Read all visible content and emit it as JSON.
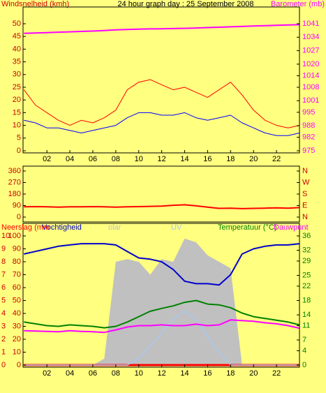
{
  "chart_data": [
    {
      "type": "line",
      "title": "24 hour graph day : 25 September 2008",
      "y_label": "Windsnelheid (kmh)",
      "y2_label": "Barometer (mb)",
      "xlim": [
        0,
        24
      ],
      "xticks": [
        {
          "value": 2,
          "label": "02"
        },
        {
          "value": 4,
          "label": "04"
        },
        {
          "value": 6,
          "label": "06"
        },
        {
          "value": 8,
          "label": "08"
        },
        {
          "value": 10,
          "label": "10"
        },
        {
          "value": 12,
          "label": "12"
        },
        {
          "value": 14,
          "label": "14"
        },
        {
          "value": 16,
          "label": "16"
        },
        {
          "value": 18,
          "label": "18"
        },
        {
          "value": 20,
          "label": "20"
        },
        {
          "value": 22,
          "label": "22"
        }
      ],
      "ylim": [
        0,
        50
      ],
      "yticks": [
        50,
        45,
        40,
        35,
        30,
        25,
        20,
        15,
        10,
        5,
        0
      ],
      "y2lim": [
        975,
        1041
      ],
      "y2ticks": [
        1041,
        1034,
        1027,
        1020,
        1014,
        1008,
        1001,
        995,
        988,
        982,
        975
      ],
      "x": [
        0,
        1,
        2,
        3,
        4,
        5,
        6,
        7,
        8,
        9,
        10,
        11,
        12,
        13,
        14,
        15,
        16,
        17,
        18,
        19,
        20,
        21,
        22,
        23,
        24
      ],
      "series": [
        {
          "color": "#ff0000",
          "axis": "y",
          "values": [
            24,
            18,
            15,
            12,
            10,
            12,
            11,
            13,
            16,
            24,
            27,
            28,
            26,
            24,
            25,
            23,
            21,
            24,
            27,
            22,
            16,
            12,
            10,
            9,
            10
          ]
        },
        {
          "color": "#0000ff",
          "axis": "y",
          "values": [
            12,
            11,
            9,
            9,
            8,
            7,
            8,
            9,
            10,
            13,
            15,
            15,
            14,
            14,
            15,
            13,
            12,
            13,
            14,
            11,
            9,
            7,
            6,
            6,
            7
          ]
        },
        {
          "color": "#ff00ff",
          "axis": "y2",
          "values": [
            1036,
            1036.2,
            1036.4,
            1036.6,
            1036.8,
            1037,
            1037.2,
            1037.5,
            1037.8,
            1038,
            1038.2,
            1038.3,
            1038.4,
            1038.5,
            1038.6,
            1038.8,
            1039,
            1039.2,
            1039.4,
            1039.6,
            1039.8,
            1040,
            1040.2,
            1040.4,
            1040.5
          ]
        }
      ]
    },
    {
      "type": "line",
      "xlim": [
        0,
        24
      ],
      "ylim": [
        0,
        360
      ],
      "yticks": [
        360,
        270,
        180,
        90,
        0
      ],
      "y2lim": [
        0,
        360
      ],
      "y2ticks": [
        {
          "value": 360,
          "label": "N"
        },
        {
          "value": 270,
          "label": "W"
        },
        {
          "value": 180,
          "label": "S"
        },
        {
          "value": 90,
          "label": "E"
        },
        {
          "value": 0,
          "label": "N"
        }
      ],
      "x": [
        0,
        1,
        2,
        3,
        4,
        5,
        6,
        7,
        8,
        9,
        10,
        11,
        12,
        13,
        14,
        15,
        16,
        17,
        18,
        19,
        20,
        21,
        22,
        23,
        24
      ],
      "series": [
        {
          "color": "#ff0000",
          "axis": "y",
          "values": [
            80,
            82,
            80,
            78,
            80,
            80,
            82,
            80,
            78,
            80,
            82,
            84,
            86,
            92,
            96,
            88,
            78,
            68,
            70,
            66,
            68,
            70,
            72,
            70,
            74
          ]
        }
      ]
    },
    {
      "type": "line",
      "xlim": [
        0,
        24
      ],
      "xticks": [
        {
          "value": 2,
          "label": "02"
        },
        {
          "value": 4,
          "label": "04"
        },
        {
          "value": 6,
          "label": "06"
        },
        {
          "value": 8,
          "label": "08"
        },
        {
          "value": 10,
          "label": "10"
        },
        {
          "value": 12,
          "label": "12"
        },
        {
          "value": 14,
          "label": "14"
        },
        {
          "value": 16,
          "label": "16"
        },
        {
          "value": 18,
          "label": "18"
        },
        {
          "value": 20,
          "label": "20"
        },
        {
          "value": 22,
          "label": "22"
        }
      ],
      "ylim": [
        0,
        100
      ],
      "yticks": [
        100,
        90,
        80,
        70,
        60,
        50,
        40,
        30,
        20,
        10,
        0
      ],
      "y3lim": [
        0,
        10
      ],
      "y3ticks": [
        10,
        9,
        8,
        7,
        6,
        5,
        4,
        3,
        2,
        1,
        0
      ],
      "y2lim": [
        0,
        36
      ],
      "y2ticks": [
        36,
        32,
        29,
        25,
        22,
        18,
        14,
        11,
        7,
        4,
        0
      ],
      "x": [
        0,
        1,
        2,
        3,
        4,
        5,
        6,
        7,
        8,
        9,
        10,
        11,
        12,
        13,
        14,
        15,
        16,
        17,
        18,
        19,
        20,
        21,
        22,
        23,
        24
      ],
      "series": [
        {
          "name": "Neerslag (mm",
          "color": "#ff0000",
          "axis": "y3",
          "values": [
            0,
            0,
            0,
            0,
            0,
            0,
            0,
            0,
            0,
            0,
            0,
            0,
            0,
            0,
            0,
            0,
            0,
            0,
            0,
            0,
            0,
            0,
            0,
            0,
            0
          ]
        },
        {
          "name": "Vochtigheid",
          "color": "#0000cc",
          "axis": "y",
          "values": [
            86,
            88,
            90,
            92,
            93,
            94,
            94,
            94,
            93,
            88,
            83,
            82,
            80,
            74,
            65,
            63,
            63,
            62,
            70,
            86,
            90,
            92,
            93,
            93,
            94
          ]
        },
        {
          "name": "olar",
          "color": "#c0c0c0",
          "axis": "y",
          "style": "area",
          "values": [
            0,
            0,
            0,
            0,
            0,
            0,
            0,
            5,
            80,
            82,
            80,
            70,
            82,
            80,
            98,
            95,
            85,
            80,
            75,
            0,
            0,
            0,
            0,
            0,
            0
          ]
        },
        {
          "name": "UV",
          "color": "#a8c8f0",
          "axis": "y",
          "values": [
            0,
            0,
            0,
            0,
            0,
            0,
            0,
            0,
            0,
            0,
            5,
            15,
            25,
            35,
            42,
            35,
            22,
            10,
            0,
            0,
            0,
            0,
            0,
            0,
            0
          ]
        },
        {
          "name": "Temperatuur (°C)",
          "color": "#008000",
          "axis": "y2",
          "values": [
            12,
            11.5,
            11,
            10.8,
            11.2,
            11,
            10.8,
            10.4,
            10.8,
            12,
            13.5,
            15,
            15.8,
            16.5,
            17.5,
            18,
            17,
            16.8,
            16,
            14.5,
            13.5,
            13,
            12.5,
            12,
            11.2
          ]
        },
        {
          "name": "Dauwpunt",
          "color": "#ff00ff",
          "axis": "y2",
          "values": [
            9.6,
            9.5,
            9.4,
            9.3,
            9.6,
            9.4,
            9.3,
            9.1,
            9.8,
            10.6,
            11,
            11,
            11.2,
            11,
            11,
            11.4,
            11,
            11.2,
            12.6,
            12.4,
            12.2,
            11.8,
            11.5,
            11,
            10.3
          ]
        }
      ]
    }
  ]
}
